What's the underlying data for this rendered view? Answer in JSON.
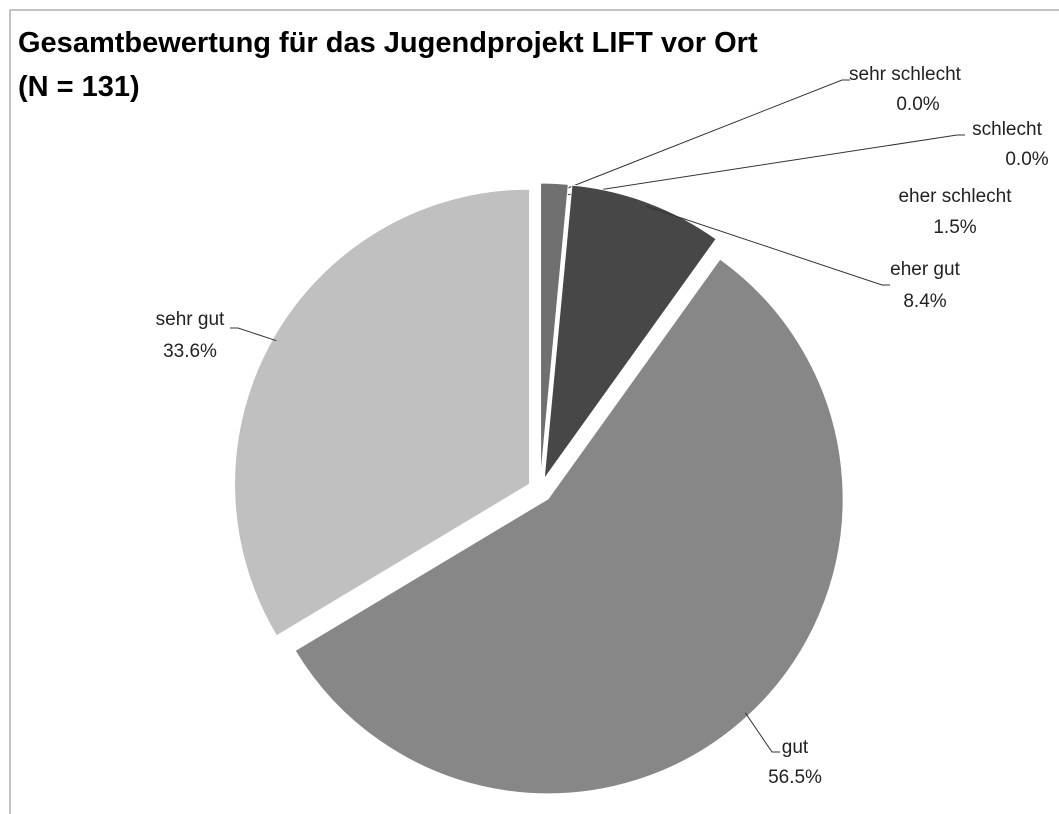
{
  "chart_data": {
    "type": "pie",
    "title": "Gesamtbewertung für das Jugendprojekt LIFT vor Ort",
    "subtitle": "(N = 131)",
    "categories": [
      "sehr schlecht",
      "schlecht",
      "eher schlecht",
      "eher gut",
      "gut",
      "sehr gut"
    ],
    "values": [
      0,
      0,
      1.5,
      8.4,
      56.5,
      33.6
    ],
    "value_labels": [
      "0.0%",
      "0.0%",
      "1.5%",
      "8.4%",
      "56.5%",
      "33.6%"
    ],
    "colors": [
      "#707070",
      "#707070",
      "#707070",
      "#474747",
      "#878787",
      "#c0c0c0"
    ]
  }
}
